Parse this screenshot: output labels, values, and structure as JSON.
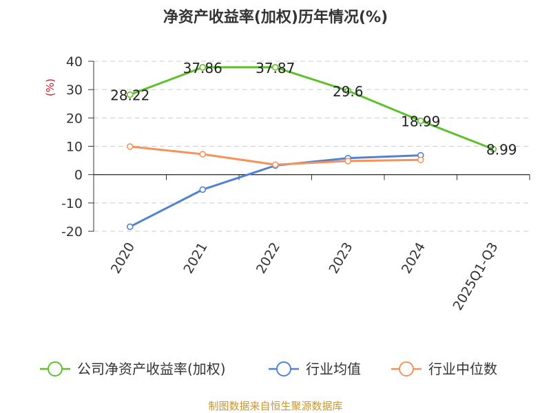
{
  "chart_data": {
    "type": "line",
    "title": "净资产收益率(加权)历年情况(%)",
    "ylabel": "(%)",
    "xlabel": "",
    "categories": [
      "2020",
      "2021",
      "2022",
      "2023",
      "2024",
      "2025Q1-Q3"
    ],
    "ylim": [
      -20,
      40
    ],
    "yticks": [
      "40",
      "30",
      "20",
      "10",
      "0",
      "-10",
      "-20"
    ],
    "grid": true,
    "legend_position": "bottom",
    "series": [
      {
        "name": "公司净资产收益率(加权)",
        "color": "#5cc02a",
        "values": [
          28.22,
          37.86,
          37.87,
          29.6,
          18.99,
          8.99
        ],
        "labels": [
          "28.22",
          "37.86",
          "37.87",
          "29.6",
          "18.99",
          "8.99"
        ]
      },
      {
        "name": "行业均值",
        "color": "#4f81d6",
        "values": [
          -18.4,
          -5.3,
          3.2,
          5.8,
          6.8,
          null
        ]
      },
      {
        "name": "行业中位数",
        "color": "#f5925a",
        "values": [
          9.9,
          7.2,
          3.5,
          4.8,
          5.2,
          null
        ]
      }
    ]
  },
  "source_text": "制图数据来自恒生聚源数据库",
  "colors": {
    "axis": "#333333",
    "grid": "#cccccc",
    "source": "#c8962d",
    "ylabel": "#d9141e"
  }
}
